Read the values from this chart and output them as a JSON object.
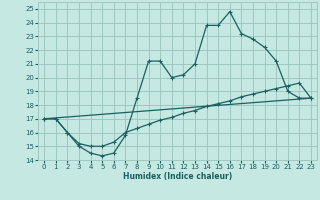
{
  "xlabel": "Humidex (Indice chaleur)",
  "xlim": [
    -0.5,
    23.5
  ],
  "ylim": [
    14,
    25.5
  ],
  "yticks": [
    14,
    15,
    16,
    17,
    18,
    19,
    20,
    21,
    22,
    23,
    24,
    25
  ],
  "xticks": [
    0,
    1,
    2,
    3,
    4,
    5,
    6,
    7,
    8,
    9,
    10,
    11,
    12,
    13,
    14,
    15,
    16,
    17,
    18,
    19,
    20,
    21,
    22,
    23
  ],
  "bg_color": "#c5e8e2",
  "grid_color": "#9dc8c0",
  "line_color": "#1a6060",
  "line1_y": [
    17.0,
    17.0,
    16.0,
    15.0,
    14.5,
    14.3,
    14.5,
    15.8,
    18.5,
    21.2,
    21.2,
    20.0,
    20.2,
    21.0,
    23.8,
    23.8,
    24.8,
    23.2,
    22.8,
    22.2,
    21.2,
    19.0,
    18.5,
    18.5
  ],
  "line2_y": [
    17.0,
    17.0,
    16.0,
    15.2,
    15.0,
    15.0,
    15.3,
    16.0,
    16.3,
    16.6,
    16.9,
    17.1,
    17.4,
    17.6,
    17.9,
    18.1,
    18.3,
    18.6,
    18.8,
    19.0,
    19.2,
    19.4,
    19.6,
    18.5
  ],
  "line3_y": [
    17.0,
    18.5
  ]
}
